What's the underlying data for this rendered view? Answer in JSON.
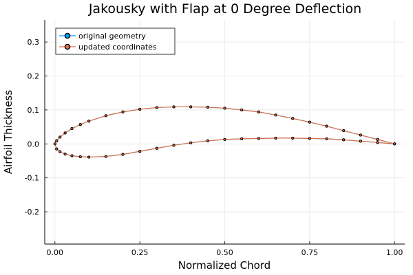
{
  "chart_data": {
    "type": "line",
    "title": "Jakousky with Flap at 0 Degree Deflection",
    "xlabel": "Normalized Chord",
    "ylabel": "Airfoil Thickness",
    "xlim": [
      -0.03,
      1.03
    ],
    "ylim": [
      -0.295,
      0.365
    ],
    "x_ticks": [
      0.0,
      0.25,
      0.5,
      0.75,
      1.0
    ],
    "x_tick_labels": [
      "0.00",
      "0.25",
      "0.50",
      "0.75",
      "1.00"
    ],
    "y_ticks": [
      -0.2,
      -0.1,
      0.0,
      0.1,
      0.2,
      0.3
    ],
    "y_tick_labels": [
      "-0.2",
      "-0.1",
      "0.0",
      "0.1",
      "0.2",
      "0.3"
    ],
    "grid": true,
    "legend_position": "top-left",
    "series": [
      {
        "name": "original geometry",
        "color": "#009AFA",
        "marker": "circle",
        "x": [
          1.0,
          0.95,
          0.9,
          0.85,
          0.8,
          0.75,
          0.7,
          0.65,
          0.6,
          0.55,
          0.5,
          0.45,
          0.4,
          0.35,
          0.3,
          0.25,
          0.2,
          0.15,
          0.1,
          0.075,
          0.05,
          0.03,
          0.015,
          0.005,
          0.0,
          0.005,
          0.015,
          0.03,
          0.05,
          0.075,
          0.1,
          0.15,
          0.2,
          0.25,
          0.3,
          0.35,
          0.4,
          0.45,
          0.5,
          0.55,
          0.6,
          0.65,
          0.7,
          0.75,
          0.8,
          0.85,
          0.9,
          0.95,
          1.0
        ],
        "y": [
          0.0,
          0.013,
          0.026,
          0.039,
          0.052,
          0.064,
          0.075,
          0.085,
          0.094,
          0.1,
          0.105,
          0.108,
          0.109,
          0.109,
          0.107,
          0.102,
          0.094,
          0.083,
          0.067,
          0.057,
          0.045,
          0.032,
          0.02,
          0.009,
          0.0,
          -0.015,
          -0.023,
          -0.03,
          -0.035,
          -0.038,
          -0.039,
          -0.037,
          -0.031,
          -0.022,
          -0.013,
          -0.004,
          0.003,
          0.009,
          0.013,
          0.015,
          0.016,
          0.017,
          0.017,
          0.016,
          0.015,
          0.012,
          0.008,
          0.004,
          0.0
        ]
      },
      {
        "name": "updated coordinates",
        "color": "#E26F46",
        "marker": "circle",
        "x": [
          1.0,
          0.95,
          0.9,
          0.85,
          0.8,
          0.75,
          0.7,
          0.65,
          0.6,
          0.55,
          0.5,
          0.45,
          0.4,
          0.35,
          0.3,
          0.25,
          0.2,
          0.15,
          0.1,
          0.075,
          0.05,
          0.03,
          0.015,
          0.005,
          0.0,
          0.005,
          0.015,
          0.03,
          0.05,
          0.075,
          0.1,
          0.15,
          0.2,
          0.25,
          0.3,
          0.35,
          0.4,
          0.45,
          0.5,
          0.55,
          0.6,
          0.65,
          0.7,
          0.75,
          0.8,
          0.85,
          0.9,
          0.95,
          1.0
        ],
        "y": [
          0.0,
          0.013,
          0.026,
          0.039,
          0.052,
          0.064,
          0.075,
          0.085,
          0.094,
          0.1,
          0.105,
          0.108,
          0.109,
          0.109,
          0.107,
          0.102,
          0.094,
          0.083,
          0.067,
          0.057,
          0.045,
          0.032,
          0.02,
          0.009,
          0.0,
          -0.015,
          -0.023,
          -0.03,
          -0.035,
          -0.038,
          -0.039,
          -0.037,
          -0.031,
          -0.022,
          -0.013,
          -0.004,
          0.003,
          0.009,
          0.013,
          0.015,
          0.016,
          0.017,
          0.017,
          0.016,
          0.015,
          0.012,
          0.008,
          0.004,
          0.0
        ]
      }
    ]
  }
}
